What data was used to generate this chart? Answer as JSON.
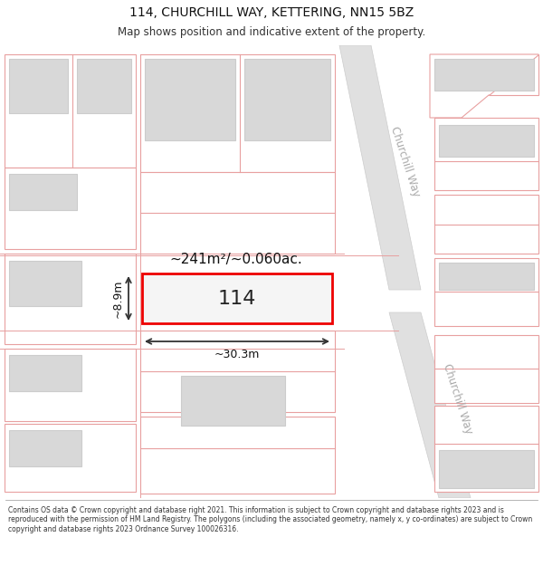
{
  "title": "114, CHURCHILL WAY, KETTERING, NN15 5BZ",
  "subtitle": "Map shows position and indicative extent of the property.",
  "footer": "Contains OS data © Crown copyright and database right 2021. This information is subject to Crown copyright and database rights 2023 and is reproduced with the permission of HM Land Registry. The polygons (including the associated geometry, namely x, y co-ordinates) are subject to Crown copyright and database rights 2023 Ordnance Survey 100026316.",
  "area_label": "~241m²/~0.060ac.",
  "property_label": "114",
  "width_label": "~30.3m",
  "height_label": "~8.9m",
  "map_bg": "#ffffff",
  "plot_edge": "#e8a0a0",
  "plot_face": "#ffffff",
  "inner_face": "#d8d8d8",
  "inner_edge": "#cccccc",
  "road_face": "#e0e0e0",
  "road_edge": "#cccccc",
  "highlight_color": "#ff0000",
  "highlight_fill": "#f0f0f0",
  "road_label_color": "#aaaaaa",
  "dim_line_color": "#444444",
  "title_fontsize": 10,
  "subtitle_fontsize": 8.5,
  "footer_fontsize": 5.5
}
